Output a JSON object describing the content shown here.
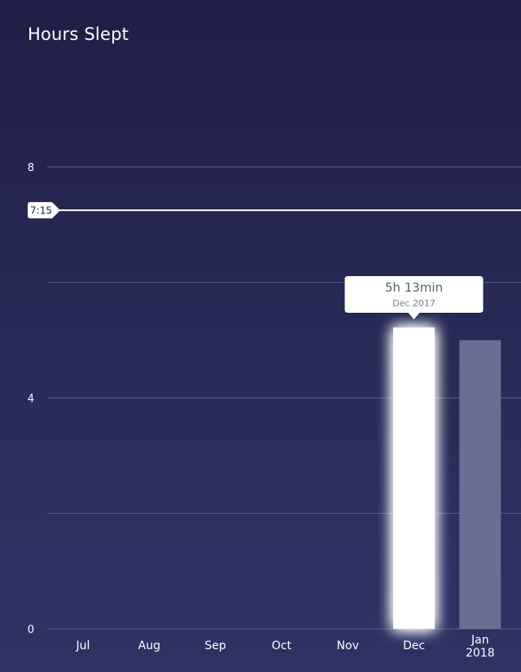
{
  "header": {
    "title": "Hours Slept"
  },
  "chart_data": {
    "type": "bar",
    "title": "Hours Slept",
    "xlabel": "",
    "ylabel": "",
    "ylim": [
      0,
      8
    ],
    "yticks": [
      0,
      4,
      8
    ],
    "grid": true,
    "categories": [
      "Jul",
      "Aug",
      "Sep",
      "Oct",
      "Nov",
      "Dec",
      "Jan\n2018"
    ],
    "category_lines": [
      [
        "Jul"
      ],
      [
        "Aug"
      ],
      [
        "Sep"
      ],
      [
        "Oct"
      ],
      [
        "Nov"
      ],
      [
        "Dec"
      ],
      [
        "Jan",
        "2018"
      ]
    ],
    "values": [
      null,
      null,
      null,
      null,
      null,
      5.22,
      5.0
    ],
    "selected_index": 5,
    "goal": {
      "label": "7:15",
      "value": 7.25
    },
    "tooltip": {
      "value_text": "5h 13min",
      "date_text": "Dec 2017"
    },
    "colors": {
      "selected_bar": "#ffffff",
      "bar": "#6b6e93",
      "grid": "#5d6189",
      "goal_line": "#ffffff"
    }
  }
}
